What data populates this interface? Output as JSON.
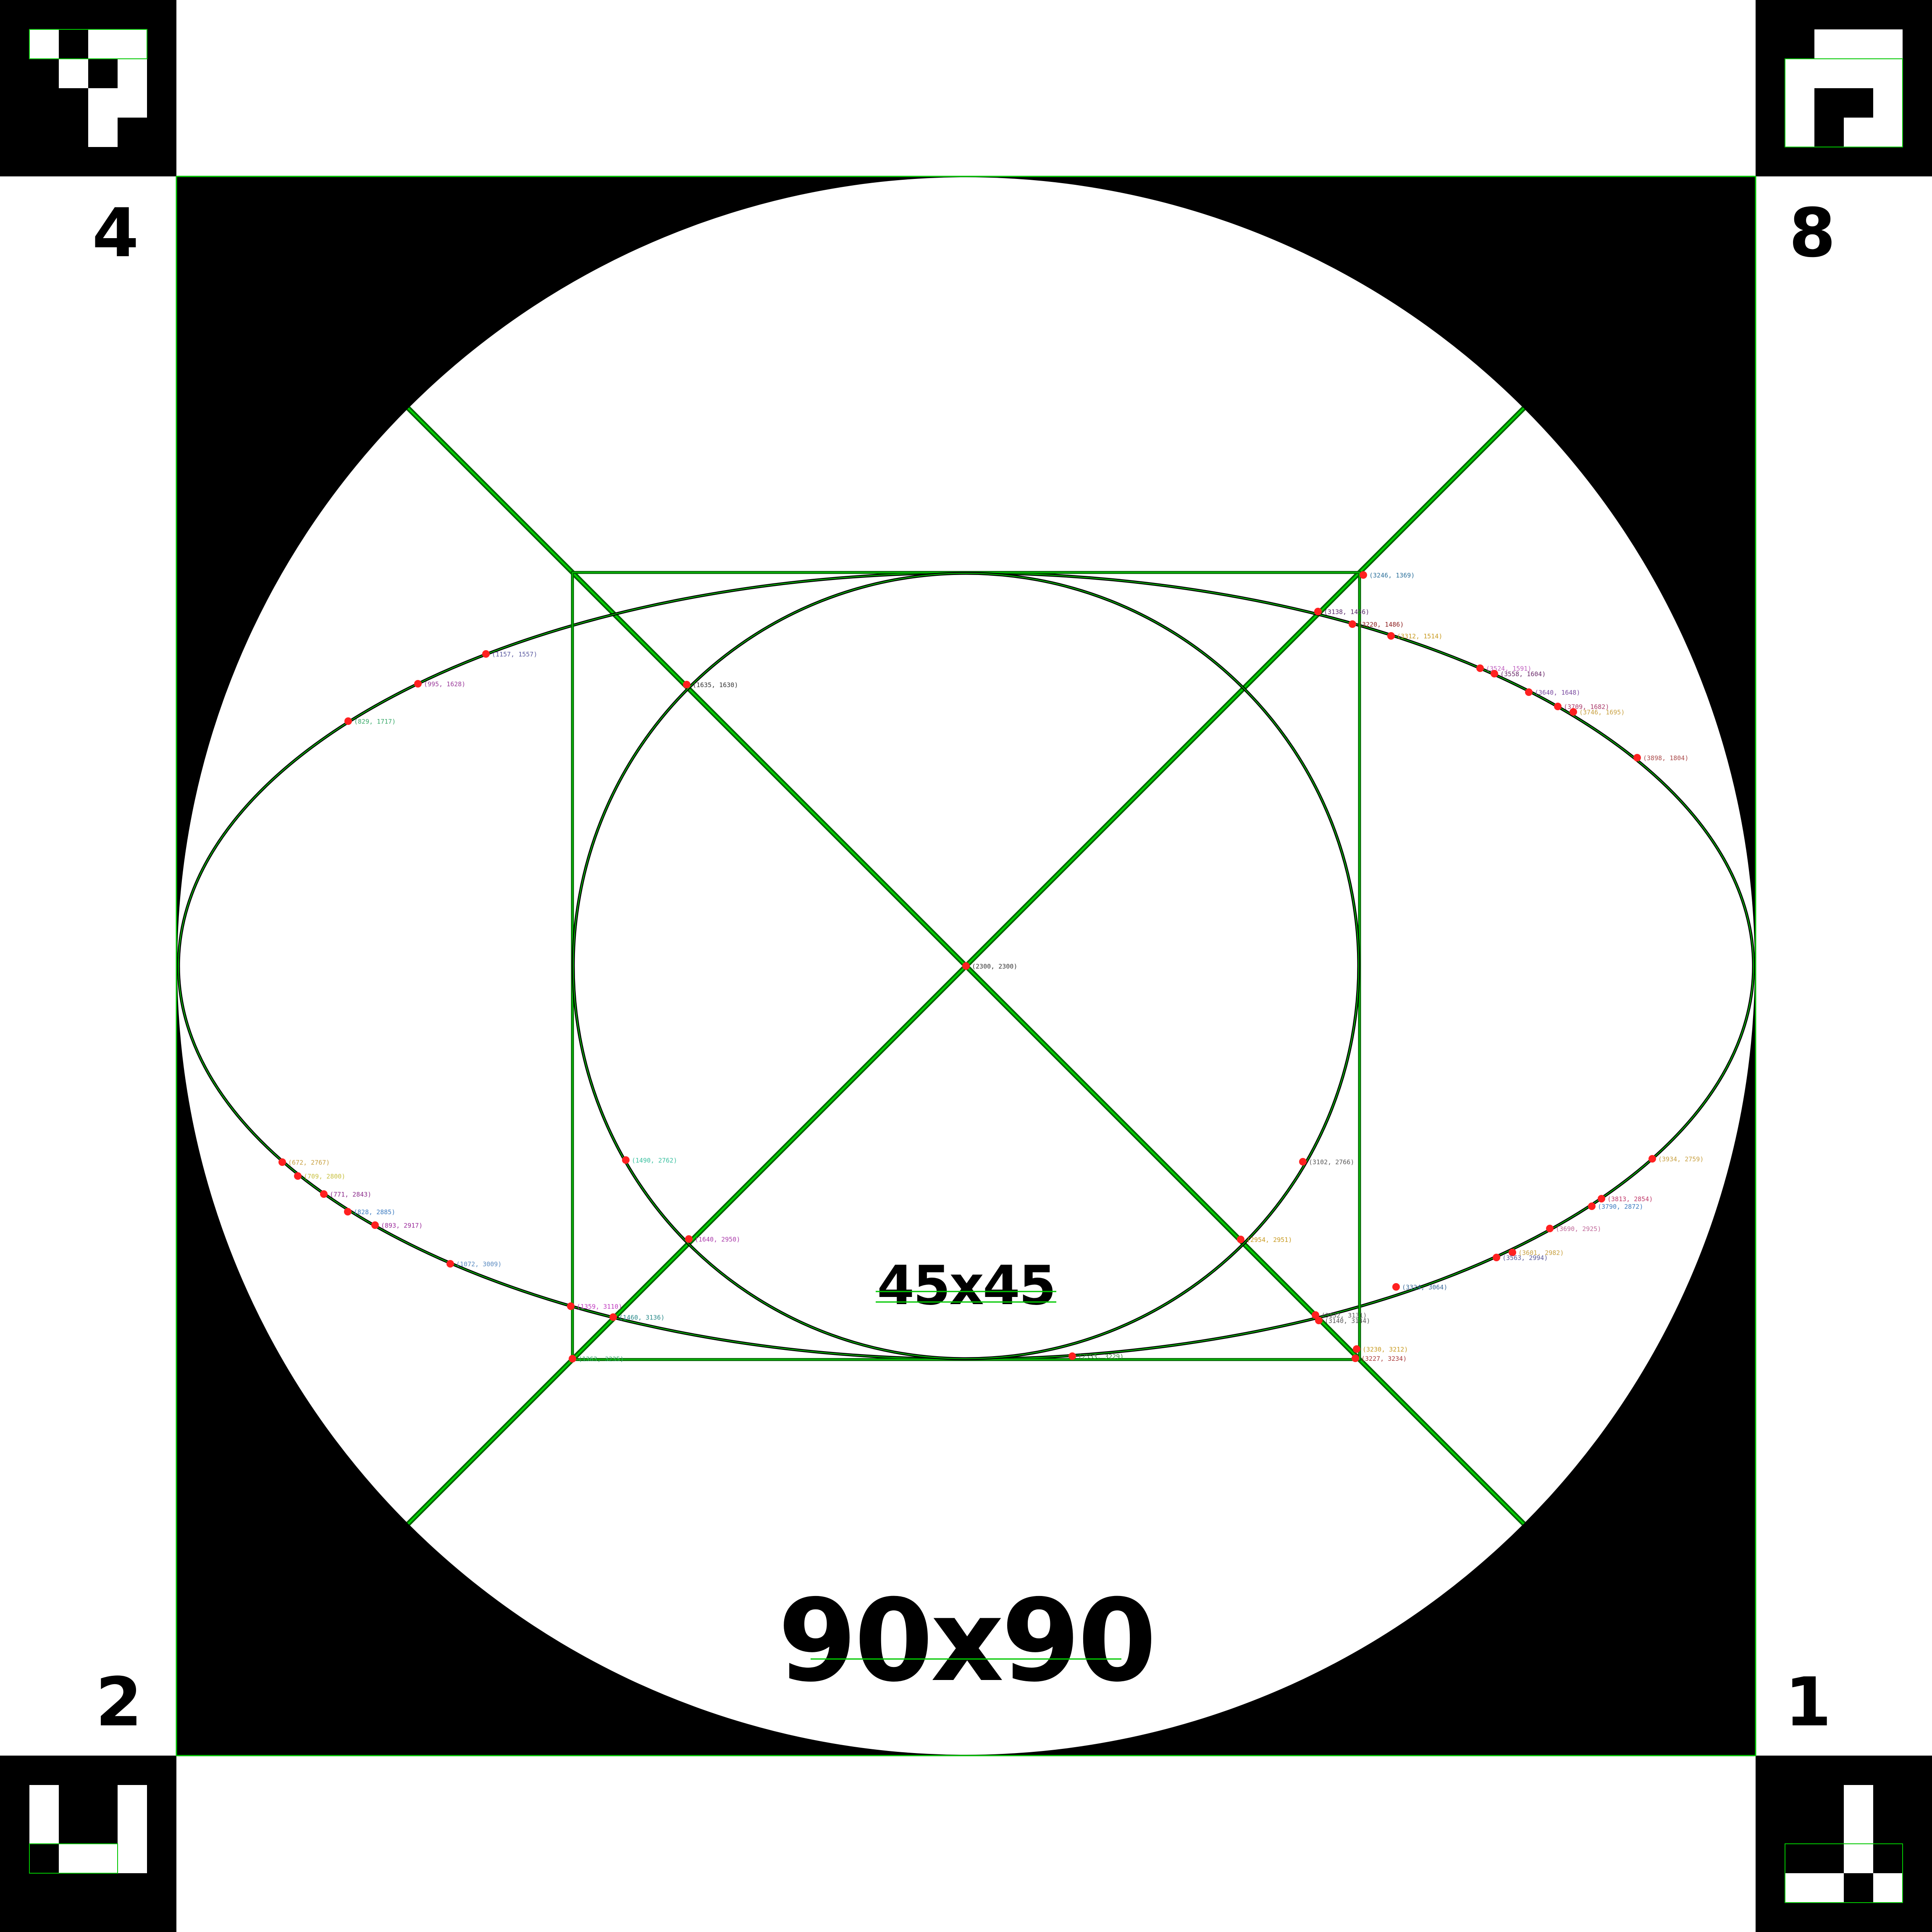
{
  "labels": {
    "corner_top_left": "4",
    "corner_top_right": "8",
    "corner_bottom_left": "2",
    "corner_bottom_right": "1",
    "size_large": "90x90",
    "size_small": "45x45"
  },
  "colors": {
    "background": "#ffffff",
    "ink": "#000000",
    "guide": "#00c800",
    "guide_dark": "#006400",
    "point": "#ff2020"
  },
  "points": [
    {
      "label": "(3246, 1369)",
      "color": "#2a6f9a"
    },
    {
      "label": "(3138, 1456)",
      "color": "#5a2a6a"
    },
    {
      "label": "(3220, 1486)",
      "color": "#8a1a1a"
    },
    {
      "label": "(3312, 1514)",
      "color": "#c89a20"
    },
    {
      "label": "(1157, 1557)",
      "color": "#5a5aa0"
    },
    {
      "label": "(995, 1628)",
      "color": "#9a3a9a"
    },
    {
      "label": "(1635, 1630)",
      "color": "#333333"
    },
    {
      "label": "(3524, 1591)",
      "color": "#c060c0"
    },
    {
      "label": "(3558, 1604)",
      "color": "#6a2a6a"
    },
    {
      "label": "(3640, 1648)",
      "color": "#7a4aa0"
    },
    {
      "label": "(3709, 1682)",
      "color": "#aa3a6a"
    },
    {
      "label": "(3746, 1695)",
      "color": "#c8a040"
    },
    {
      "label": "(829, 1717)",
      "color": "#3aaa6a"
    },
    {
      "label": "(3898, 1804)",
      "color": "#aa4a4a"
    },
    {
      "label": "(2300, 2300)",
      "color": "#333333"
    },
    {
      "label": "(672, 2767)",
      "color": "#c8a040"
    },
    {
      "label": "(1490, 2762)",
      "color": "#3ac0a0"
    },
    {
      "label": "(3102, 2766)",
      "color": "#5a5a5a"
    },
    {
      "label": "(3934, 2759)",
      "color": "#c8a040"
    },
    {
      "label": "(709, 2800)",
      "color": "#c8c040"
    },
    {
      "label": "(771, 2843)",
      "color": "#8a2a8a"
    },
    {
      "label": "(828, 2885)",
      "color": "#3a7ac0"
    },
    {
      "label": "(893, 2917)",
      "color": "#9a2a9a"
    },
    {
      "label": "(3813, 2854)",
      "color": "#c03a6a"
    },
    {
      "label": "(3790, 2872)",
      "color": "#3a7ac0"
    },
    {
      "label": "(3690, 2925)",
      "color": "#c06a9a"
    },
    {
      "label": "(1640, 2950)",
      "color": "#aa3aaa"
    },
    {
      "label": "(2954, 2951)",
      "color": "#c89a20"
    },
    {
      "label": "(3601, 2982)",
      "color": "#c8a040"
    },
    {
      "label": "(3563, 2994)",
      "color": "#5a5a9a"
    },
    {
      "label": "(1072, 3009)",
      "color": "#5a8ac0"
    },
    {
      "label": "(3324, 3064)",
      "color": "#3a6a9a"
    },
    {
      "label": "(1359, 3110)",
      "color": "#c03ac0"
    },
    {
      "label": "(1460, 3136)",
      "color": "#2a8a8a"
    },
    {
      "label": "(3132, 3131)",
      "color": "#5a5a5a"
    },
    {
      "label": "(3140, 3144)",
      "color": "#5a5a5a"
    },
    {
      "label": "(3230, 3212)",
      "color": "#c89a20"
    },
    {
      "label": "(3227, 3234)",
      "color": "#aa3a3a"
    },
    {
      "label": "(1363, 3235)",
      "color": "#3aaa6a"
    },
    {
      "label": "(2553, 3229)",
      "color": "#3a8a3a"
    }
  ]
}
